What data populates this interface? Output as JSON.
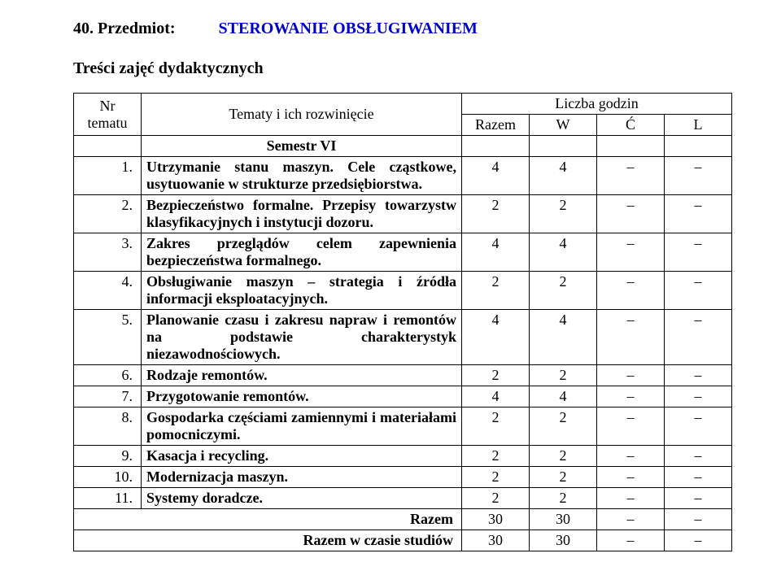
{
  "header": {
    "number_label": "40.",
    "przedmiot_label": "Przedmiot:",
    "subject_title": "STEROWANIE OBSŁUGIWANIEM",
    "subtitle": "Treści zajęć dydaktycznych"
  },
  "table": {
    "head": {
      "nr": "Nr tematu",
      "tematy": "Tematy i ich rozwinięcie",
      "liczba": "Liczba godzin",
      "razem": "Razem",
      "w": "W",
      "c": "Ć",
      "l": "L"
    },
    "semester": "Semestr VI",
    "rows": [
      {
        "nr": "1.",
        "topic": "Utrzymanie stanu maszyn. Cele cząstkowe, usytuowanie w strukturze przedsiębiorstwa.",
        "razem": "4",
        "w": "4",
        "c": "–",
        "l": "–"
      },
      {
        "nr": "2.",
        "topic": "Bezpieczeństwo formalne. Przepisy towarzystw klasyfikacyjnych i instytucji dozoru.",
        "razem": "2",
        "w": "2",
        "c": "–",
        "l": "–"
      },
      {
        "nr": "3.",
        "topic": "Zakres przeglądów celem zapewnienia bezpieczeństwa formalnego.",
        "razem": "4",
        "w": "4",
        "c": "–",
        "l": "–"
      },
      {
        "nr": "4.",
        "topic": "Obsługiwanie maszyn – strategia i źródła informacji eksploatacyjnych.",
        "razem": "2",
        "w": "2",
        "c": "–",
        "l": "–"
      },
      {
        "nr": "5.",
        "topic": "Planowanie czasu i zakresu napraw i remontów na podstawie charakterystyk niezawodnościowych.",
        "razem": "4",
        "w": "4",
        "c": "–",
        "l": "–"
      },
      {
        "nr": "6.",
        "topic": "Rodzaje remontów.",
        "razem": "2",
        "w": "2",
        "c": "–",
        "l": "–"
      },
      {
        "nr": "7.",
        "topic": "Przygotowanie remontów.",
        "razem": "4",
        "w": "4",
        "c": "–",
        "l": "–"
      },
      {
        "nr": "8.",
        "topic": "Gospodarka częściami zamiennymi i materiałami pomocniczymi.",
        "razem": "2",
        "w": "2",
        "c": "–",
        "l": "–"
      },
      {
        "nr": "9.",
        "topic": "Kasacja i recycling.",
        "razem": "2",
        "w": "2",
        "c": "–",
        "l": "–"
      },
      {
        "nr": "10.",
        "topic": "Modernizacja maszyn.",
        "razem": "2",
        "w": "2",
        "c": "–",
        "l": "–"
      },
      {
        "nr": "11.",
        "topic": "Systemy doradcze.",
        "razem": "2",
        "w": "2",
        "c": "–",
        "l": "–"
      }
    ],
    "totals": {
      "razem_label": "Razem",
      "razem_vals": {
        "razem": "30",
        "w": "30",
        "c": "–",
        "l": "–"
      },
      "studia_label": "Razem w czasie studiów",
      "studia_vals": {
        "razem": "30",
        "w": "30",
        "c": "–",
        "l": "–"
      }
    }
  }
}
